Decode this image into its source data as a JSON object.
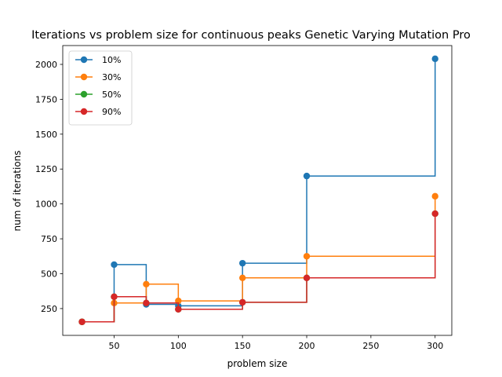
{
  "chart_data": {
    "type": "line",
    "step": "post",
    "title": "Iterations vs problem size for continuous peaks Genetic Varying Mutation Pro",
    "xlabel": "problem size",
    "ylabel": "num of iterations",
    "xlim": [
      10,
      313
    ],
    "ylim": [
      58,
      2135
    ],
    "xticks": [
      50,
      100,
      150,
      200,
      250,
      300
    ],
    "yticks": [
      250,
      500,
      750,
      1000,
      1250,
      1500,
      1750,
      2000
    ],
    "grid": false,
    "legend_position": "top-left",
    "x": [
      25,
      50,
      75,
      100,
      150,
      200,
      300
    ],
    "series": [
      {
        "name": "10%",
        "color": "#1f77b4",
        "values": [
          155,
          565,
          280,
          270,
          575,
          1200,
          2040
        ]
      },
      {
        "name": "30%",
        "color": "#ff7f0e",
        "values": [
          155,
          290,
          425,
          305,
          470,
          625,
          1055
        ]
      },
      {
        "name": "50%",
        "color": "#2ca02c",
        "values": [
          155,
          335,
          290,
          245,
          295,
          470,
          930
        ]
      },
      {
        "name": "90%",
        "color": "#d62728",
        "values": [
          155,
          335,
          290,
          245,
          295,
          470,
          930
        ]
      }
    ]
  }
}
